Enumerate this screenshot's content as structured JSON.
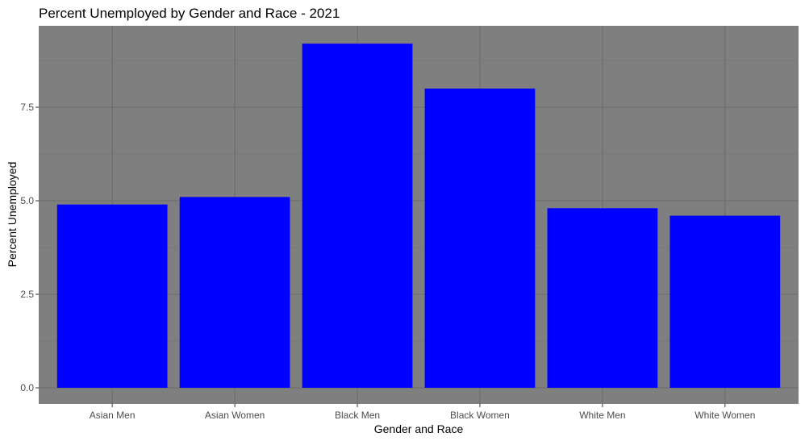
{
  "chart_data": {
    "type": "bar",
    "title": "Percent Unemployed by Gender and Race - 2021",
    "xlabel": "Gender and Race",
    "ylabel": "Percent Unemployed",
    "categories": [
      "Asian Men",
      "Asian Women",
      "Black Men",
      "Black Women",
      "White Men",
      "White Women"
    ],
    "values": [
      4.9,
      5.1,
      9.2,
      8.0,
      4.8,
      4.6
    ],
    "ylim": [
      0,
      9.65
    ],
    "y_ticks": [
      0,
      2.5,
      5,
      7.5
    ],
    "y_tick_labels": [
      "0.0",
      "2.5",
      "5.0",
      "7.5"
    ],
    "grid": true,
    "legend": "none",
    "colors": {
      "bar": "#0000ff",
      "panel_background": "#7f7f7f",
      "grid_major": "#6b6b6b",
      "grid_minor": "#747474",
      "tick_mark": "#333333",
      "tick_label": "#4d4d4d"
    }
  }
}
